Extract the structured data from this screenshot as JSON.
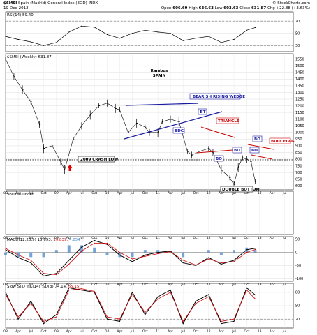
{
  "header": {
    "symbol": "$SMSI",
    "description": "Spain (Madrid) General Index (EOD) INDX",
    "date": "19-Dec-2012",
    "watermark": "© StockCharts.com",
    "ohlc": {
      "open_label": "Open",
      "open": "606.69",
      "high_label": "High",
      "high": "636.63",
      "low_label": "Low",
      "low": "603.63",
      "close_label": "Close",
      "close": "631.87",
      "change": "Chg +22.88 (+3.63%)"
    }
  },
  "panels": {
    "rsi_label": "RSI(14) 59.40",
    "price_label": "$SMSI (Weekly) 631.87",
    "volume_label": "Volume undef",
    "macd_label_prefix": "MACD(12,26,9) 15.693,",
    "macd_signal": "10.839,",
    "macd_hist": "4.854",
    "sto_label_prefix": "Slow STO %K(14) %D(3) 74.14,",
    "sto_d": "65.15"
  },
  "annotations": {
    "author": "Rambus",
    "market": "SPAIN",
    "wedge": "BEARISH RISING WEDGE",
    "triangle": "TRIANGLE",
    "crash_low": "2009 CRASH LOW",
    "double_bottom": "DOUBLE BOTTOM",
    "bull_flag": "BULL FLAG",
    "bo_small": "BO",
    "bdg": "BDG",
    "bt": "BT"
  },
  "colors": {
    "price": "#000000",
    "trend_blue": "#1a1aa0",
    "trend_red": "#cc0000",
    "macd_hist": "#4a86c8",
    "signal_red": "#cc0000",
    "arrow_red": "#e00000"
  },
  "chart_data": [
    {
      "type": "line",
      "panel": "rsi",
      "title": "RSI(14) 59.40",
      "y_ticks": [
        30,
        50,
        70
      ],
      "ylim": [
        20,
        85
      ],
      "x": [
        "2008-01",
        "2008-04",
        "2008-07",
        "2008-10",
        "2009-01",
        "2009-04",
        "2009-07",
        "2009-10",
        "2010-01",
        "2010-04",
        "2010-07",
        "2010-10",
        "2011-01",
        "2011-04",
        "2011-07",
        "2011-10",
        "2012-01",
        "2012-04",
        "2012-07",
        "2012-10",
        "2012-12"
      ],
      "values": [
        45,
        40,
        36,
        30,
        35,
        52,
        62,
        60,
        48,
        42,
        50,
        55,
        52,
        50,
        38,
        42,
        45,
        35,
        40,
        55,
        59.4
      ]
    },
    {
      "type": "line",
      "panel": "price",
      "title": "$SMSI (Weekly) 631.87",
      "y_ticks": [
        600,
        650,
        700,
        750,
        800,
        850,
        900,
        950,
        1000,
        1050,
        1100,
        1150,
        1200,
        1250,
        1300,
        1350,
        1400,
        1450,
        1500,
        1550
      ],
      "ylim": [
        570,
        1590
      ],
      "x_ticks": [
        "08",
        "Apr",
        "Jul",
        "Oct",
        "09",
        "Apr",
        "Jul",
        "Oct",
        "10",
        "Apr",
        "Jul",
        "Oct",
        "11",
        "Apr",
        "Jul",
        "Oct",
        "12",
        "Apr",
        "Jul",
        "Oct",
        "13",
        "Apr",
        "Jul"
      ],
      "x": [
        "2008-01",
        "2008-03",
        "2008-05",
        "2008-07",
        "2008-09",
        "2008-10",
        "2008-12",
        "2009-02",
        "2009-03",
        "2009-05",
        "2009-07",
        "2009-09",
        "2009-11",
        "2010-01",
        "2010-03",
        "2010-04",
        "2010-06",
        "2010-08",
        "2010-10",
        "2010-11",
        "2011-01",
        "2011-02",
        "2011-04",
        "2011-06",
        "2011-08",
        "2011-09",
        "2011-11",
        "2012-01",
        "2012-02",
        "2012-04",
        "2012-06",
        "2012-07",
        "2012-08",
        "2012-09",
        "2012-10",
        "2012-11",
        "2012-12"
      ],
      "values": [
        1550,
        1420,
        1320,
        1230,
        1060,
        880,
        900,
        780,
        720,
        950,
        1050,
        1130,
        1200,
        1220,
        1180,
        1170,
        1000,
        1070,
        1040,
        1000,
        1000,
        1080,
        1100,
        1080,
        860,
        830,
        860,
        880,
        850,
        720,
        660,
        610,
        740,
        810,
        800,
        780,
        632
      ]
    },
    {
      "type": "line",
      "panel": "macd",
      "title": "MACD(12,26,9) 15.693, 10.839, 4.854",
      "y_ticks": [
        -100,
        -50,
        0,
        50
      ],
      "ylim": [
        -110,
        60
      ],
      "x": [
        "2008-01",
        "2008-04",
        "2008-07",
        "2008-10",
        "2009-01",
        "2009-04",
        "2009-07",
        "2009-10",
        "2010-01",
        "2010-04",
        "2010-07",
        "2010-10",
        "2011-01",
        "2011-04",
        "2011-07",
        "2011-10",
        "2012-01",
        "2012-04",
        "2012-07",
        "2012-10",
        "2012-12"
      ],
      "series": [
        {
          "name": "MACD",
          "values": [
            10,
            -20,
            -40,
            -90,
            -80,
            -30,
            20,
            45,
            30,
            -10,
            -35,
            -10,
            0,
            5,
            -40,
            -50,
            -20,
            -45,
            -30,
            10,
            15.693
          ]
        },
        {
          "name": "Signal",
          "values": [
            15,
            -10,
            -30,
            -80,
            -85,
            -45,
            5,
            35,
            35,
            0,
            -25,
            -15,
            -5,
            3,
            -30,
            -48,
            -25,
            -40,
            -35,
            0,
            10.839
          ]
        }
      ]
    },
    {
      "type": "line",
      "panel": "sto",
      "title": "Slow STO %K(14) %D(3) 74.14, 65.15",
      "y_ticks": [
        20,
        50,
        80
      ],
      "ylim": [
        0,
        100
      ],
      "x": [
        "2008-01",
        "2008-04",
        "2008-07",
        "2008-10",
        "2009-01",
        "2009-04",
        "2009-07",
        "2009-10",
        "2010-01",
        "2010-04",
        "2010-07",
        "2010-10",
        "2011-01",
        "2011-04",
        "2011-07",
        "2011-10",
        "2012-01",
        "2012-04",
        "2012-07",
        "2012-10",
        "2012-12"
      ],
      "series": [
        {
          "name": "%K",
          "values": [
            80,
            20,
            60,
            10,
            30,
            90,
            85,
            80,
            20,
            15,
            80,
            30,
            70,
            85,
            10,
            60,
            75,
            10,
            15,
            90,
            74.14
          ]
        },
        {
          "name": "%D",
          "values": [
            75,
            25,
            55,
            15,
            25,
            85,
            88,
            82,
            25,
            20,
            75,
            35,
            65,
            80,
            15,
            55,
            70,
            15,
            20,
            85,
            65.15
          ]
        }
      ]
    }
  ]
}
